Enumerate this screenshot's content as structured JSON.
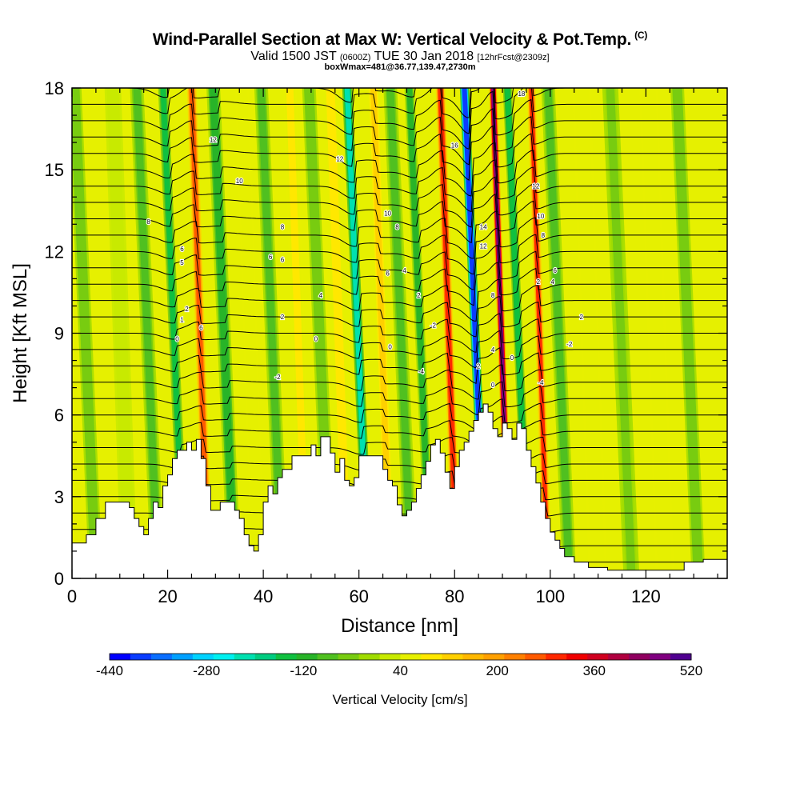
{
  "chart_data": {
    "type": "heatmap",
    "title": "Wind-Parallel Section at Max W: Vertical Velocity & Pot.Temp.",
    "title_mark": "(C)",
    "subtitle_main": "Valid 1500 JST",
    "subtitle_utc": "(0600Z)",
    "subtitle_date": "TUE 30 Jan 2018",
    "subtitle_fcst": "[12hrFcst@2309z]",
    "subtitle2": "boxWmax=481@36.77,139.47,2730m",
    "xlabel": "Distance [nm]",
    "ylabel": "Height [Kft MSL]",
    "xlim": [
      0,
      137
    ],
    "ylim": [
      0,
      18
    ],
    "xticks": [
      "0",
      "20",
      "40",
      "60",
      "80",
      "100",
      "120"
    ],
    "yticks": [
      "0",
      "3",
      "6",
      "9",
      "12",
      "15",
      "18"
    ],
    "xtick_values": [
      0,
      20,
      40,
      60,
      80,
      100,
      120
    ],
    "ytick_values": [
      0,
      3,
      6,
      9,
      12,
      15,
      18
    ],
    "colorbar_title": "Vertical Velocity [cm/s]",
    "colorbar_labels": [
      "-440",
      "-280",
      "-120",
      "40",
      "200",
      "360",
      "520"
    ],
    "colorbar_colors": [
      "#0000ff",
      "#0a3cff",
      "#0a6eff",
      "#00a0ff",
      "#00d2ff",
      "#00f0f0",
      "#00e0b0",
      "#00cc80",
      "#10c040",
      "#28b428",
      "#50c020",
      "#78cc10",
      "#a0dc00",
      "#c8ea00",
      "#e6f000",
      "#ffe800",
      "#ffd000",
      "#ffb800",
      "#ffa000",
      "#ff8000",
      "#ff5a00",
      "#ff2800",
      "#f00000",
      "#d00020",
      "#b00040",
      "#900060",
      "#800080",
      "#500090"
    ],
    "terrain_kft": [
      [
        0,
        1.3
      ],
      [
        2,
        1.3
      ],
      [
        3,
        1.6
      ],
      [
        5,
        2.2
      ],
      [
        7,
        2.8
      ],
      [
        9,
        2.8
      ],
      [
        11,
        2.8
      ],
      [
        12,
        2.6
      ],
      [
        13,
        2.2
      ],
      [
        14,
        1.9
      ],
      [
        15,
        1.6
      ],
      [
        16,
        2.2
      ],
      [
        17,
        2.8
      ],
      [
        18,
        2.6
      ],
      [
        19,
        3.4
      ],
      [
        20,
        3.8
      ],
      [
        21,
        4.4
      ],
      [
        22,
        4.7
      ],
      [
        24,
        5.0
      ],
      [
        25,
        4.7
      ],
      [
        26,
        5.1
      ],
      [
        27,
        4.4
      ],
      [
        28,
        3.4
      ],
      [
        29,
        2.5
      ],
      [
        30,
        2.5
      ],
      [
        31,
        2.8
      ],
      [
        33,
        2.8
      ],
      [
        34,
        2.5
      ],
      [
        35,
        2.2
      ],
      [
        36,
        1.6
      ],
      [
        37,
        1.2
      ],
      [
        38,
        1.0
      ],
      [
        39,
        1.6
      ],
      [
        40,
        2.8
      ],
      [
        41,
        3.4
      ],
      [
        42,
        3.1
      ],
      [
        43,
        3.7
      ],
      [
        44,
        4.0
      ],
      [
        46,
        4.5
      ],
      [
        49,
        4.5
      ],
      [
        50,
        4.9
      ],
      [
        51,
        4.5
      ],
      [
        52,
        5.2
      ],
      [
        53,
        5.2
      ],
      [
        54,
        4.6
      ],
      [
        55,
        3.9
      ],
      [
        56,
        4.4
      ],
      [
        57,
        3.6
      ],
      [
        58,
        3.4
      ],
      [
        59,
        3.7
      ],
      [
        60,
        4.5
      ],
      [
        62,
        4.5
      ],
      [
        64,
        4.5
      ],
      [
        65,
        4.0
      ],
      [
        66,
        3.6
      ],
      [
        67,
        3.4
      ],
      [
        68,
        2.7
      ],
      [
        69,
        2.3
      ],
      [
        70,
        2.5
      ],
      [
        71,
        2.8
      ],
      [
        72,
        3.3
      ],
      [
        73,
        3.8
      ],
      [
        74,
        4.3
      ],
      [
        75,
        4.9
      ],
      [
        76,
        5.1
      ],
      [
        77,
        4.6
      ],
      [
        78,
        3.9
      ],
      [
        79,
        3.3
      ],
      [
        80,
        4.1
      ],
      [
        81,
        4.7
      ],
      [
        82,
        5.0
      ],
      [
        83,
        5.4
      ],
      [
        84,
        5.8
      ],
      [
        85,
        6.1
      ],
      [
        86,
        6.4
      ],
      [
        87,
        6.1
      ],
      [
        88,
        5.5
      ],
      [
        89,
        5.2
      ],
      [
        90,
        5.7
      ],
      [
        91,
        5.5
      ],
      [
        92,
        5.1
      ],
      [
        93,
        5.7
      ],
      [
        94,
        5.5
      ],
      [
        95,
        4.7
      ],
      [
        96,
        4.1
      ],
      [
        97,
        3.5
      ],
      [
        98,
        2.8
      ],
      [
        99,
        2.2
      ],
      [
        100,
        1.7
      ],
      [
        101,
        1.4
      ],
      [
        102,
        1.1
      ],
      [
        103,
        0.8
      ],
      [
        105,
        0.6
      ],
      [
        108,
        0.4
      ],
      [
        112,
        0.3
      ],
      [
        126,
        0.3
      ],
      [
        128,
        0.6
      ],
      [
        132,
        0.7
      ],
      [
        137,
        0.7
      ]
    ],
    "vv_bands": [
      {
        "x": 5,
        "w": 3.0,
        "v": -60
      },
      {
        "x": 12,
        "w": 3.5,
        "v": 20
      },
      {
        "x": 18,
        "w": 3.0,
        "v": -70
      },
      {
        "x": 23.5,
        "w": 2.2,
        "v": -140
      },
      {
        "x": 28.5,
        "w": 2.0,
        "v": 250
      },
      {
        "x": 34,
        "w": 3.0,
        "v": -110
      },
      {
        "x": 39,
        "w": 3.0,
        "v": 60
      },
      {
        "x": 44,
        "w": 3.0,
        "v": -90
      },
      {
        "x": 49,
        "w": 3.0,
        "v": 80
      },
      {
        "x": 54,
        "w": 3.0,
        "v": -60
      },
      {
        "x": 57.5,
        "w": 2.5,
        "v": 90
      },
      {
        "x": 62,
        "w": 2.2,
        "v": -220
      },
      {
        "x": 66.5,
        "w": 2.5,
        "v": 120
      },
      {
        "x": 71,
        "w": 3.0,
        "v": -80
      },
      {
        "x": 75,
        "w": 2.2,
        "v": -130
      },
      {
        "x": 80.5,
        "w": 2.0,
        "v": 290
      },
      {
        "x": 86.5,
        "w": 2.0,
        "v": -400
      },
      {
        "x": 91.5,
        "w": 1.6,
        "v": 470
      },
      {
        "x": 95.5,
        "w": 2.0,
        "v": -150
      },
      {
        "x": 99.5,
        "w": 1.8,
        "v": 280
      },
      {
        "x": 104,
        "w": 3.0,
        "v": -80
      },
      {
        "x": 110,
        "w": 4.0,
        "v": 60
      },
      {
        "x": 117,
        "w": 3.5,
        "v": -50
      },
      {
        "x": 124,
        "w": 4.0,
        "v": 50
      },
      {
        "x": 131,
        "w": 3.0,
        "v": -60
      }
    ],
    "isentrope_labels": [
      {
        "x": 16,
        "y": 13.1,
        "text": "8"
      },
      {
        "x": 23,
        "y": 12.1,
        "text": "6"
      },
      {
        "x": 23,
        "y": 11.6,
        "text": "5"
      },
      {
        "x": 24,
        "y": 9.9,
        "text": "2"
      },
      {
        "x": 23,
        "y": 9.5,
        "text": "1"
      },
      {
        "x": 22,
        "y": 8.8,
        "text": "0"
      },
      {
        "x": 27,
        "y": 9.2,
        "text": "6"
      },
      {
        "x": 29.5,
        "y": 16.1,
        "text": "12"
      },
      {
        "x": 35,
        "y": 14.6,
        "text": "10"
      },
      {
        "x": 41.5,
        "y": 11.8,
        "text": "6"
      },
      {
        "x": 44,
        "y": 12.9,
        "text": "8"
      },
      {
        "x": 44,
        "y": 11.7,
        "text": "6"
      },
      {
        "x": 44,
        "y": 9.6,
        "text": "2"
      },
      {
        "x": 43,
        "y": 7.4,
        "text": "-2"
      },
      {
        "x": 52,
        "y": 10.4,
        "text": "4"
      },
      {
        "x": 51,
        "y": 8.8,
        "text": "0"
      },
      {
        "x": 56,
        "y": 15.4,
        "text": "12"
      },
      {
        "x": 66,
        "y": 13.4,
        "text": "10"
      },
      {
        "x": 68,
        "y": 12.9,
        "text": "8"
      },
      {
        "x": 66,
        "y": 11.2,
        "text": "6"
      },
      {
        "x": 69.5,
        "y": 11.3,
        "text": "4"
      },
      {
        "x": 72.5,
        "y": 10.4,
        "text": "2"
      },
      {
        "x": 66.5,
        "y": 8.5,
        "text": "0"
      },
      {
        "x": 75.5,
        "y": 9.3,
        "text": "-2"
      },
      {
        "x": 73,
        "y": 7.6,
        "text": "-4"
      },
      {
        "x": 80,
        "y": 15.9,
        "text": "16"
      },
      {
        "x": 86,
        "y": 12.9,
        "text": "14"
      },
      {
        "x": 86,
        "y": 12.2,
        "text": "12"
      },
      {
        "x": 88,
        "y": 10.4,
        "text": "8"
      },
      {
        "x": 88,
        "y": 8.4,
        "text": "4"
      },
      {
        "x": 85,
        "y": 7.8,
        "text": "2"
      },
      {
        "x": 88,
        "y": 7.1,
        "text": "0"
      },
      {
        "x": 92,
        "y": 8.1,
        "text": "0"
      },
      {
        "x": 94,
        "y": 17.8,
        "text": "18"
      },
      {
        "x": 97,
        "y": 14.4,
        "text": "12"
      },
      {
        "x": 98,
        "y": 13.3,
        "text": "10"
      },
      {
        "x": 98.5,
        "y": 12.6,
        "text": "8"
      },
      {
        "x": 101,
        "y": 11.3,
        "text": "6"
      },
      {
        "x": 100.5,
        "y": 10.9,
        "text": "4"
      },
      {
        "x": 97.5,
        "y": 10.9,
        "text": "2"
      },
      {
        "x": 106.5,
        "y": 9.6,
        "text": "2"
      },
      {
        "x": 104,
        "y": 8.6,
        "text": "-2"
      },
      {
        "x": 98,
        "y": 7.2,
        "text": "-4"
      }
    ]
  }
}
